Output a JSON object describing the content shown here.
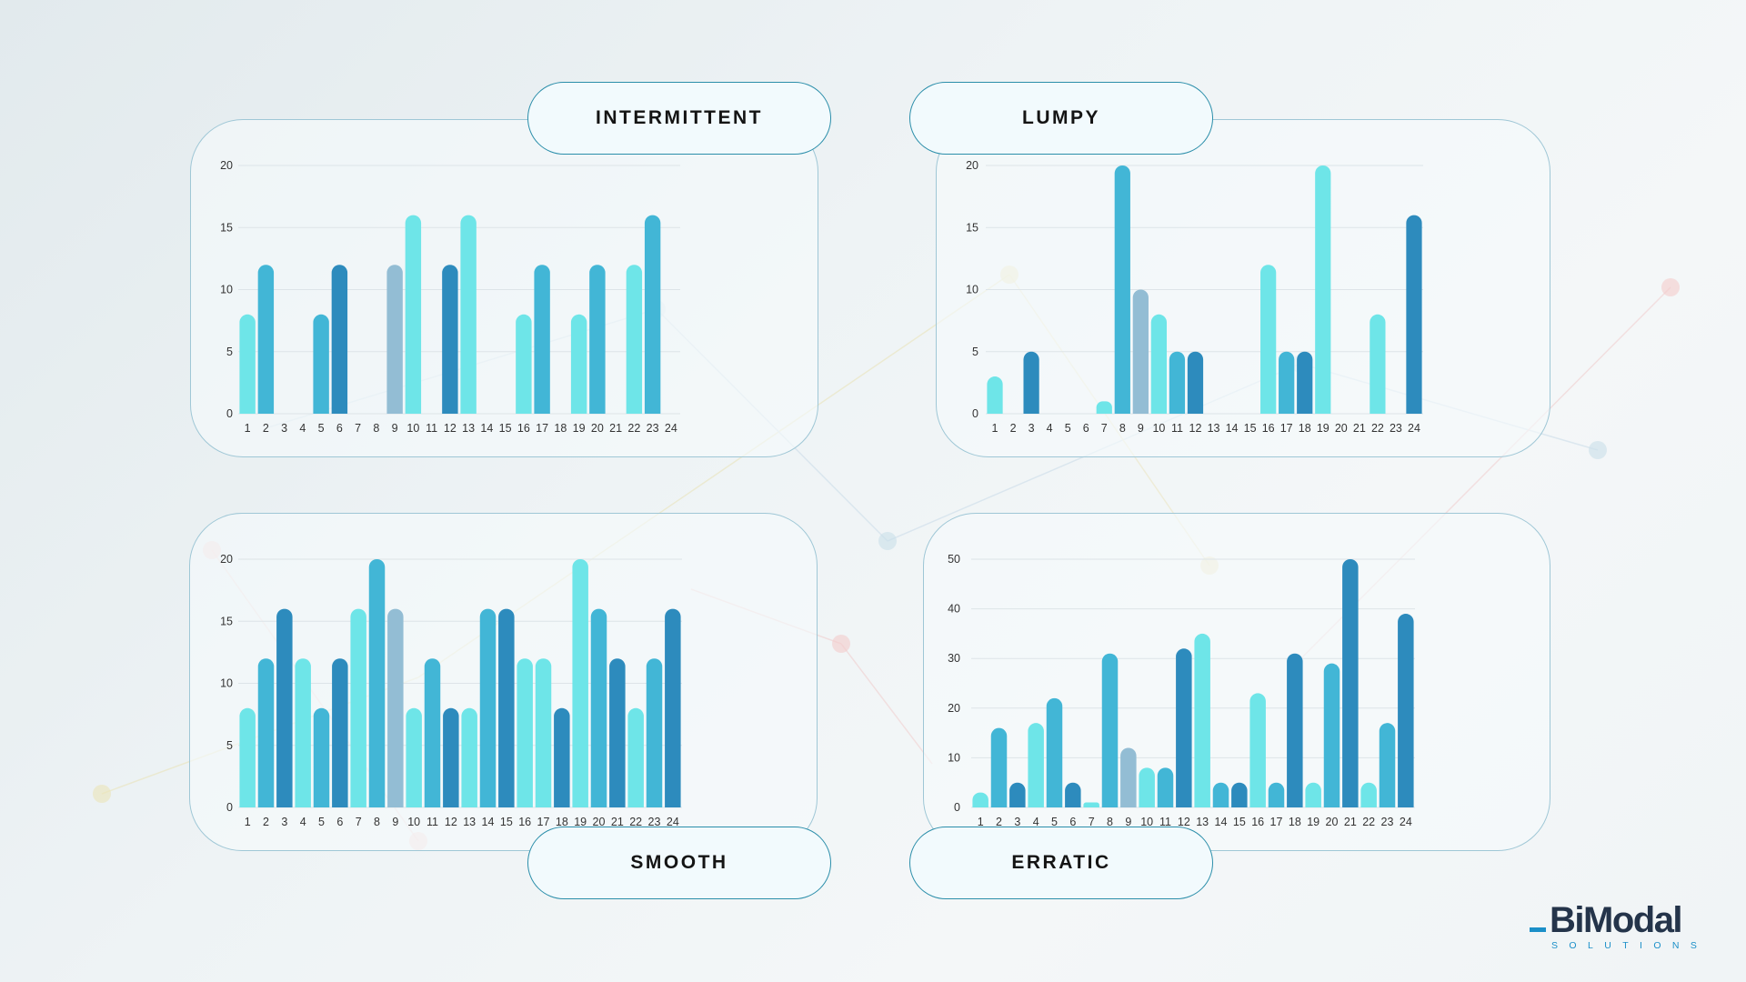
{
  "colors": {
    "light": "#6ee5e8",
    "mid": "#42b6d6",
    "dark": "#2d8bbd",
    "grey": "#93bdd4"
  },
  "chart_data": [
    {
      "type": "bar",
      "label": "INTERMITTENT",
      "categories": [
        "1",
        "2",
        "3",
        "4",
        "5",
        "6",
        "7",
        "8",
        "9",
        "10",
        "11",
        "12",
        "13",
        "14",
        "15",
        "16",
        "17",
        "18",
        "19",
        "20",
        "21",
        "22",
        "23",
        "24"
      ],
      "values": [
        8,
        12,
        0,
        0,
        8,
        12,
        0,
        0,
        12,
        16,
        0,
        12,
        16,
        0,
        0,
        8,
        12,
        0,
        8,
        12,
        0,
        12,
        16,
        0
      ],
      "bar_colors": [
        "light",
        "mid",
        "",
        "",
        "mid",
        "dark",
        "",
        "",
        "grey",
        "light",
        "",
        "dark",
        "light",
        "",
        "",
        "light",
        "mid",
        "",
        "light",
        "mid",
        "",
        "light",
        "mid",
        ""
      ],
      "yticks": [
        0,
        5,
        10,
        15,
        20
      ],
      "ylim": [
        0,
        20
      ]
    },
    {
      "type": "bar",
      "label": "LUMPY",
      "categories": [
        "1",
        "2",
        "3",
        "4",
        "5",
        "6",
        "7",
        "8",
        "9",
        "10",
        "11",
        "12",
        "13",
        "14",
        "15",
        "16",
        "17",
        "18",
        "19",
        "20",
        "21",
        "22",
        "23",
        "24"
      ],
      "values": [
        3,
        0,
        5,
        0,
        0,
        0,
        1,
        20,
        10,
        8,
        5,
        5,
        0,
        0,
        0,
        12,
        5,
        5,
        20,
        0,
        0,
        8,
        0,
        16
      ],
      "bar_colors": [
        "light",
        "",
        "dark",
        "",
        "",
        "",
        "light",
        "mid",
        "grey",
        "light",
        "mid",
        "dark",
        "",
        "",
        "",
        "light",
        "mid",
        "dark",
        "light",
        "",
        "",
        "light",
        "",
        "dark"
      ],
      "yticks": [
        0,
        5,
        10,
        15,
        20
      ],
      "ylim": [
        0,
        20
      ]
    },
    {
      "type": "bar",
      "label": "SMOOTH",
      "categories": [
        "1",
        "2",
        "3",
        "4",
        "5",
        "6",
        "7",
        "8",
        "9",
        "10",
        "11",
        "12",
        "13",
        "14",
        "15",
        "16",
        "17",
        "18",
        "19",
        "20",
        "21",
        "22",
        "23",
        "24"
      ],
      "values": [
        8,
        12,
        16,
        12,
        8,
        12,
        16,
        20,
        16,
        8,
        12,
        8,
        8,
        16,
        16,
        12,
        12,
        8,
        20,
        16,
        12,
        8,
        12,
        16
      ],
      "bar_colors": [
        "light",
        "mid",
        "dark",
        "light",
        "mid",
        "dark",
        "light",
        "mid",
        "grey",
        "light",
        "mid",
        "dark",
        "light",
        "mid",
        "dark",
        "light",
        "light",
        "dark",
        "light",
        "mid",
        "dark",
        "light",
        "mid",
        "dark"
      ],
      "yticks": [
        0,
        5,
        10,
        15,
        20
      ],
      "ylim": [
        0,
        20
      ]
    },
    {
      "type": "bar",
      "label": "ERRATIC",
      "categories": [
        "1",
        "2",
        "3",
        "4",
        "5",
        "6",
        "7",
        "8",
        "9",
        "10",
        "11",
        "12",
        "13",
        "14",
        "15",
        "16",
        "17",
        "18",
        "19",
        "20",
        "21",
        "22",
        "23",
        "24"
      ],
      "values": [
        3,
        16,
        5,
        17,
        22,
        5,
        1,
        31,
        12,
        8,
        8,
        32,
        35,
        5,
        5,
        23,
        5,
        31,
        5,
        29,
        50,
        5,
        17,
        39
      ],
      "bar_colors": [
        "light",
        "mid",
        "dark",
        "light",
        "mid",
        "dark",
        "light",
        "mid",
        "grey",
        "light",
        "mid",
        "dark",
        "light",
        "mid",
        "dark",
        "light",
        "mid",
        "dark",
        "light",
        "mid",
        "dark",
        "light",
        "mid",
        "dark"
      ],
      "yticks": [
        0,
        10,
        20,
        30,
        40,
        50
      ],
      "ylim": [
        0,
        50
      ]
    }
  ],
  "logo": {
    "word": "BiModal",
    "sub": "SOLUTIONS"
  }
}
